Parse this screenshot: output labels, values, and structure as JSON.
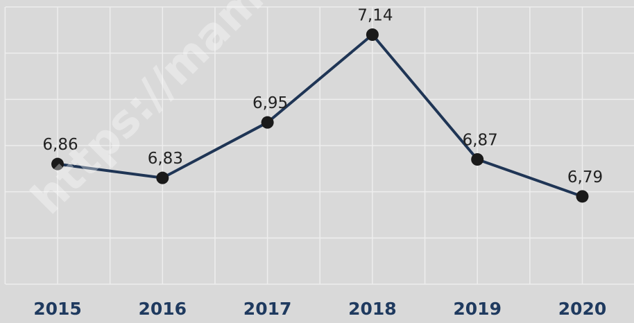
{
  "chart_data": {
    "type": "line",
    "watermark": "https://mamujuk",
    "categories": [
      "2015",
      "2016",
      "2017",
      "2018",
      "2019",
      "2020"
    ],
    "series": [
      {
        "color": "#1f3555",
        "values": [
          6.86,
          6.83,
          6.95,
          7.14,
          6.87,
          6.79
        ],
        "value_labels": [
          "6,86",
          "6,83",
          "6,95",
          "7,14",
          "6,87",
          "6,79"
        ]
      }
    ],
    "ylim": [
      6.6,
      7.2
    ],
    "yticks": [
      6.6,
      6.7,
      6.8,
      6.9,
      7.0,
      7.1,
      7.2
    ],
    "grid": true
  }
}
